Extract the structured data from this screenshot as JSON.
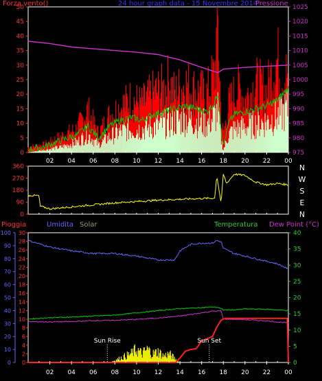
{
  "header": {
    "left_title": "Forza vento()",
    "center_title": "24 hour graph data - 15 Novembre 2014",
    "right_title": "Pressione"
  },
  "section2_header": {
    "pioggia": "Pioggia",
    "umidita": "Umidita",
    "solar": "Solar",
    "temperatura": "Temperatura",
    "dewpoint": "Dew Point (°C)"
  },
  "colors": {
    "background": "#000000",
    "frame": "#ffffff",
    "wind_gust": "#ff0000",
    "wind_avg": "#00cc00",
    "wind_light": "#ccffcc",
    "pressure": "#cc33cc",
    "direction": "#ffff00",
    "humidity": "#6666ff",
    "temperature": "#00cc00",
    "dewpoint": "#cc33cc",
    "rain": "#ff2020",
    "solar": "#ffff00",
    "axis_red": "#ff3333",
    "axis_blue": "#6666ff",
    "axis_green": "#33cc33",
    "axis_magenta": "#cc33cc",
    "axis_yellow": "#ffff00"
  },
  "chart_data": [
    {
      "type": "line",
      "name": "wind_pressure",
      "x_ticks": [
        "02",
        "04",
        "06",
        "08",
        "10",
        "12",
        "14",
        "16",
        "18",
        "20",
        "22",
        "00"
      ],
      "y_left": {
        "range": [
          0,
          50
        ],
        "ticks": [
          0,
          5,
          10,
          15,
          20,
          25,
          30,
          35,
          40,
          45,
          50
        ]
      },
      "y_right": {
        "range": [
          975,
          1025
        ],
        "ticks": [
          975,
          980,
          985,
          990,
          995,
          1000,
          1005,
          1010,
          1015,
          1020,
          1025
        ]
      },
      "series": [
        {
          "role": "pressure",
          "x": [
            0,
            2,
            4,
            6,
            8,
            10,
            12,
            14,
            16,
            17.5,
            18,
            20,
            22,
            24
          ],
          "y": [
            1013.2,
            1012.4,
            1011.2,
            1010.6,
            1010.0,
            1009.4,
            1008.6,
            1006.8,
            1004.2,
            1002.4,
            1003.6,
            1004.2,
            1004.6,
            1005.0
          ]
        },
        {
          "role": "gust",
          "x": [
            0,
            1.5,
            3,
            4.5,
            5.5,
            6.5,
            7.5,
            8.5,
            9.5,
            10.5,
            11.5,
            12.5,
            13,
            13.5,
            14.5,
            15.5,
            16.5,
            17.2,
            17.5,
            17.8,
            18,
            18.5,
            19,
            19.5,
            20,
            21,
            22,
            22.5,
            23,
            23.5,
            24
          ],
          "y": [
            2,
            3,
            6,
            9,
            16,
            7,
            14,
            17,
            20,
            18,
            22,
            24,
            27,
            22,
            26,
            23,
            22,
            30,
            48,
            12,
            7,
            18,
            22,
            24,
            20,
            26,
            23,
            30,
            35,
            28,
            30
          ]
        },
        {
          "role": "average",
          "x": [
            0,
            1.5,
            3,
            4.5,
            5.5,
            6.5,
            7.5,
            8.5,
            9.5,
            10.5,
            11.5,
            12.5,
            13.5,
            14.5,
            15.5,
            16.5,
            17.2,
            17.5,
            17.8,
            18,
            18.5,
            19,
            20,
            21,
            22,
            23,
            24
          ],
          "y": [
            1,
            2,
            4,
            6,
            9,
            5,
            9,
            11,
            12,
            11,
            13,
            14,
            15,
            16,
            15,
            14,
            17,
            21,
            8,
            2,
            10,
            13,
            14,
            15,
            16,
            18,
            22
          ]
        },
        {
          "role": "light",
          "x": [
            0,
            1.5,
            3,
            4.5,
            5.5,
            6.5,
            7.5,
            8.5,
            9.5,
            10.5,
            11.5,
            12.5,
            13.5,
            14.5,
            15.5,
            16.5,
            17.2,
            17.5,
            17.8,
            18,
            18.5,
            19,
            20,
            21,
            22,
            23,
            24
          ],
          "y": [
            0,
            1,
            2,
            4,
            7,
            3,
            6,
            8,
            9,
            9,
            10,
            11,
            12,
            13,
            12,
            11,
            14,
            16,
            5,
            1,
            7,
            9,
            10,
            11,
            12,
            14,
            17
          ]
        }
      ]
    },
    {
      "type": "line",
      "name": "wind_direction",
      "y_left": {
        "range": [
          0,
          360
        ],
        "ticks": [
          0,
          90,
          180,
          270,
          360
        ]
      },
      "y_right_labels": [
        "N",
        "W",
        "S",
        "E",
        "N"
      ],
      "series": [
        {
          "role": "direction",
          "x": [
            0,
            1,
            1.1,
            2,
            4,
            6,
            8,
            10,
            12,
            14,
            16,
            17.2,
            17.4,
            17.8,
            18,
            18.3,
            19,
            20,
            21,
            22,
            23,
            24
          ],
          "y": [
            140,
            140,
            60,
            40,
            55,
            70,
            85,
            95,
            105,
            112,
            118,
            120,
            290,
            80,
            300,
            230,
            300,
            290,
            240,
            220,
            230,
            220
          ]
        }
      ]
    },
    {
      "type": "line",
      "name": "temp_humidity_rain",
      "x_ticks": [
        "02",
        "04",
        "06",
        "08",
        "10",
        "12",
        "14",
        "16",
        "18",
        "20",
        "22",
        "00"
      ],
      "y_humidity": {
        "range": [
          0,
          100
        ],
        "ticks": [
          0,
          10,
          20,
          30,
          40,
          50,
          60,
          70,
          80,
          90,
          100
        ]
      },
      "y_rain": {
        "range": [
          0,
          30
        ],
        "ticks": [
          0,
          2,
          4,
          6,
          8,
          10,
          12,
          14,
          16,
          18,
          20,
          22,
          24,
          26,
          28,
          30
        ]
      },
      "y_temp": {
        "range": [
          0,
          40
        ],
        "ticks": [
          0,
          5,
          10,
          15,
          20,
          25,
          30,
          35,
          40
        ]
      },
      "annotations": [
        {
          "text": "Sun Rise",
          "x": 7.3
        },
        {
          "text": "Sun Set",
          "x": 16.7
        }
      ],
      "series": [
        {
          "role": "humidity",
          "x": [
            0,
            2,
            4,
            6,
            8,
            10,
            12,
            13.5,
            14,
            15,
            16,
            17,
            17.4,
            17.8,
            18,
            19,
            20,
            21,
            22,
            23,
            24
          ],
          "y": [
            94,
            89,
            86,
            84,
            84,
            82,
            79,
            79,
            86,
            91,
            92,
            92,
            94,
            93,
            88,
            84,
            82,
            80,
            78,
            76,
            72
          ]
        },
        {
          "role": "temperature",
          "x": [
            0,
            2,
            4,
            6,
            8,
            10,
            12,
            14,
            16,
            17,
            17.5,
            18,
            19,
            20,
            22,
            24
          ],
          "y": [
            13.4,
            13.8,
            14.0,
            14.3,
            14.6,
            15.3,
            16.0,
            16.6,
            16.9,
            17.1,
            17.0,
            16.2,
            16.2,
            16.5,
            16.4,
            16.0
          ]
        },
        {
          "role": "dewpoint",
          "x": [
            0,
            2,
            4,
            6,
            8,
            10,
            12,
            14,
            16,
            17,
            17.8,
            18,
            19,
            20,
            22,
            23,
            24
          ],
          "y": [
            12.6,
            12.5,
            12.6,
            12.9,
            13.0,
            13.3,
            13.7,
            14.3,
            15.3,
            15.8,
            15.9,
            13.4,
            13.3,
            13.2,
            12.8,
            12.5,
            12.2
          ]
        },
        {
          "role": "rain",
          "x": [
            0,
            13.6,
            14,
            14.5,
            15,
            15.5,
            16,
            16.5,
            17,
            17.4,
            17.8,
            18.2,
            19,
            20,
            21,
            22,
            23,
            23.9,
            24
          ],
          "y": [
            0,
            0,
            1,
            2.6,
            3,
            3.2,
            5,
            5.5,
            6,
            8.2,
            9.8,
            10.2,
            10.2,
            10.2,
            10.2,
            10.2,
            10.2,
            10.2,
            0
          ]
        },
        {
          "role": "solar",
          "x": [
            0,
            7.5,
            8,
            8.5,
            9,
            9.5,
            10,
            10.5,
            11,
            11.5,
            12,
            12.5,
            13,
            13.5,
            14,
            24
          ],
          "y": [
            0,
            0,
            0.5,
            1,
            1.5,
            2,
            3,
            2,
            3,
            2,
            2.5,
            1.5,
            2,
            1,
            0,
            0
          ]
        }
      ]
    }
  ]
}
